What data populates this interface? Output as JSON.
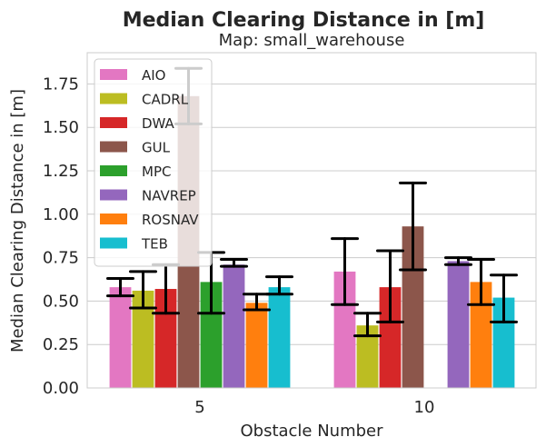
{
  "chart_data": {
    "type": "bar",
    "title": "Median Clearing Distance in [m]",
    "subtitle": "Map: small_warehouse",
    "xlabel": "Obstacle Number",
    "ylabel": "Median Clearing Distance in [m]",
    "categories": [
      "5",
      "10"
    ],
    "ylim": [
      0,
      1.93
    ],
    "yticks": [
      "0.00",
      "0.25",
      "0.50",
      "0.75",
      "1.00",
      "1.25",
      "1.50",
      "1.75"
    ],
    "grid": true,
    "legend_position": "top-left",
    "series": [
      {
        "name": "AIO",
        "color": "#e377c2",
        "values": [
          0.58,
          0.67
        ],
        "err_low": [
          0.53,
          0.48
        ],
        "err_high": [
          0.63,
          0.86
        ]
      },
      {
        "name": "CADRL",
        "color": "#bcbd22",
        "values": [
          0.56,
          0.36
        ],
        "err_low": [
          0.46,
          0.3
        ],
        "err_high": [
          0.67,
          0.43
        ]
      },
      {
        "name": "DWA",
        "color": "#d62728",
        "values": [
          0.57,
          0.58
        ],
        "err_low": [
          0.43,
          0.38
        ],
        "err_high": [
          0.71,
          0.79
        ]
      },
      {
        "name": "GUL",
        "color": "#8c564b",
        "values": [
          1.68,
          0.93
        ],
        "err_low": [
          1.52,
          0.68
        ],
        "err_high": [
          1.84,
          1.18
        ]
      },
      {
        "name": "MPC",
        "color": "#2ca02c",
        "values": [
          0.61,
          null
        ],
        "err_low": [
          0.43,
          null
        ],
        "err_high": [
          0.78,
          null
        ]
      },
      {
        "name": "NAVREP",
        "color": "#9467bd",
        "values": [
          0.71,
          0.73
        ],
        "err_low": [
          0.7,
          0.71
        ],
        "err_high": [
          0.74,
          0.75
        ]
      },
      {
        "name": "ROSNAV",
        "color": "#ff7f0e",
        "values": [
          0.49,
          0.61
        ],
        "err_low": [
          0.45,
          0.48
        ],
        "err_high": [
          0.54,
          0.74
        ]
      },
      {
        "name": "TEB",
        "color": "#17becf",
        "values": [
          0.58,
          0.52
        ],
        "err_low": [
          0.54,
          0.38
        ],
        "err_high": [
          0.64,
          0.65
        ]
      }
    ]
  }
}
